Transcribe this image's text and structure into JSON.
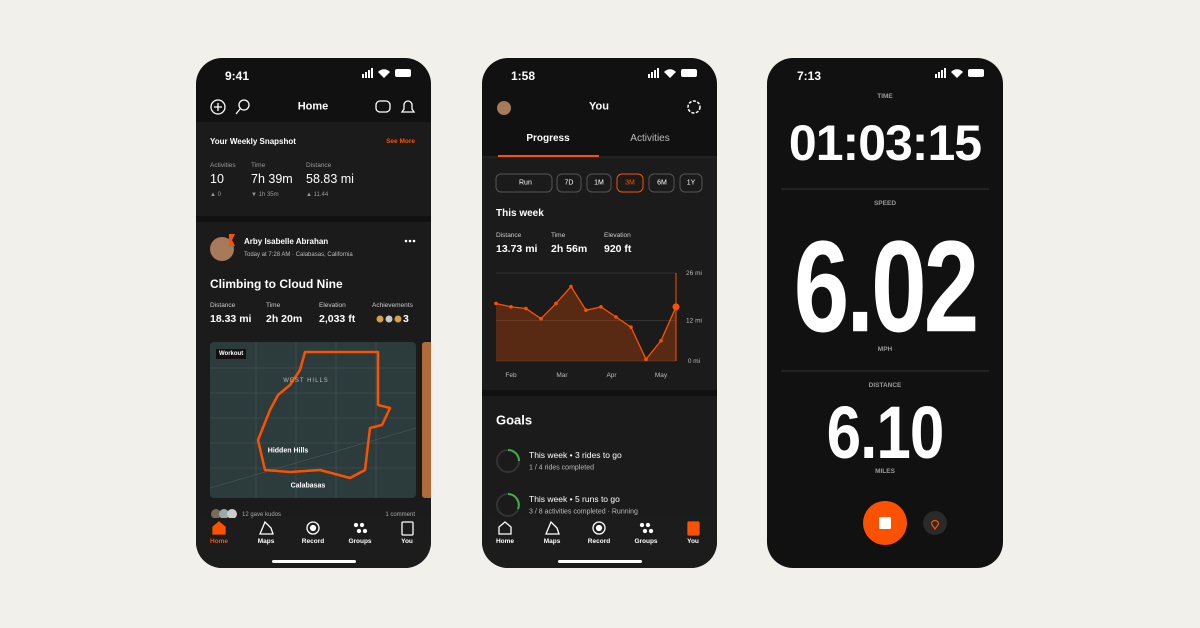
{
  "home": {
    "status_time": "9:41",
    "title": "Home",
    "snapshot": {
      "title": "Your Weekly Snapshot",
      "link": "See More",
      "stats": [
        {
          "label": "Activities",
          "value": "10",
          "change": "▲ 0"
        },
        {
          "label": "Time",
          "value": "7h 39m",
          "change": "▼ 1h 35m"
        },
        {
          "label": "Distance",
          "value": "58.83 mi",
          "change": "▲ 11.44"
        }
      ]
    },
    "post": {
      "athlete": "Arby Isabelle Abrahan",
      "meta": "Today at 7:28 AM · Calabasas, California",
      "title": "Climbing to Cloud Nine",
      "stats": [
        {
          "label": "Distance",
          "value": "18.33 mi"
        },
        {
          "label": "Time",
          "value": "2h 20m"
        },
        {
          "label": "Elevation",
          "value": "2,033 ft"
        },
        {
          "label": "Achievements",
          "value": "3"
        }
      ],
      "map": {
        "tag": "Workout",
        "labels": [
          "WEST HILLS",
          "Hidden Hills",
          "Calabasas"
        ]
      },
      "kudos": "12 gave kudos",
      "comments": "1 comment"
    }
  },
  "nav": [
    "Home",
    "Maps",
    "Record",
    "Groups",
    "You"
  ],
  "you": {
    "status_time": "1:58",
    "title": "You",
    "tabs": [
      "Progress",
      "Activities"
    ],
    "filters": {
      "sport": "Run",
      "ranges": [
        "7D",
        "1M",
        "3M",
        "6M",
        "1Y"
      ]
    },
    "week": {
      "title": "This week",
      "stats": [
        {
          "label": "Distance",
          "value": "13.73 mi"
        },
        {
          "label": "Time",
          "value": "2h 56m"
        },
        {
          "label": "Elevation",
          "value": "920 ft"
        }
      ]
    },
    "chart_data": {
      "type": "line",
      "color": "#fc5200",
      "values": [
        17,
        16,
        15.5,
        12.5,
        17,
        22,
        15,
        16,
        13,
        10,
        0.5,
        6,
        16
      ],
      "ylim": [
        0,
        26
      ],
      "yticks": [
        {
          "value": 26,
          "label": "26 mi"
        },
        {
          "value": 12,
          "label": "12 mi"
        },
        {
          "value": 0,
          "label": "0 mi"
        }
      ],
      "xticks": [
        {
          "value": 1,
          "label": "Feb"
        },
        {
          "value": 4.4,
          "label": "Mar"
        },
        {
          "value": 7.7,
          "label": "Apr"
        },
        {
          "value": 11,
          "label": "May"
        }
      ],
      "grid": true
    },
    "goals": {
      "title": "Goals",
      "items": [
        {
          "title": "This week • 3 rides to go",
          "detail": "1 / 4 rides completed"
        },
        {
          "title": "This week • 5 runs to go",
          "detail": "3 / 8 activities completed · Running"
        }
      ]
    }
  },
  "record": {
    "status_time": "7:13",
    "time_label": "TIME",
    "time": "01:03:15",
    "speed_label": "SPEED",
    "speed": "6.02",
    "speed_unit": "MPH",
    "distance_label": "DISTANCE",
    "distance": "6.10",
    "distance_unit": "MILES"
  }
}
